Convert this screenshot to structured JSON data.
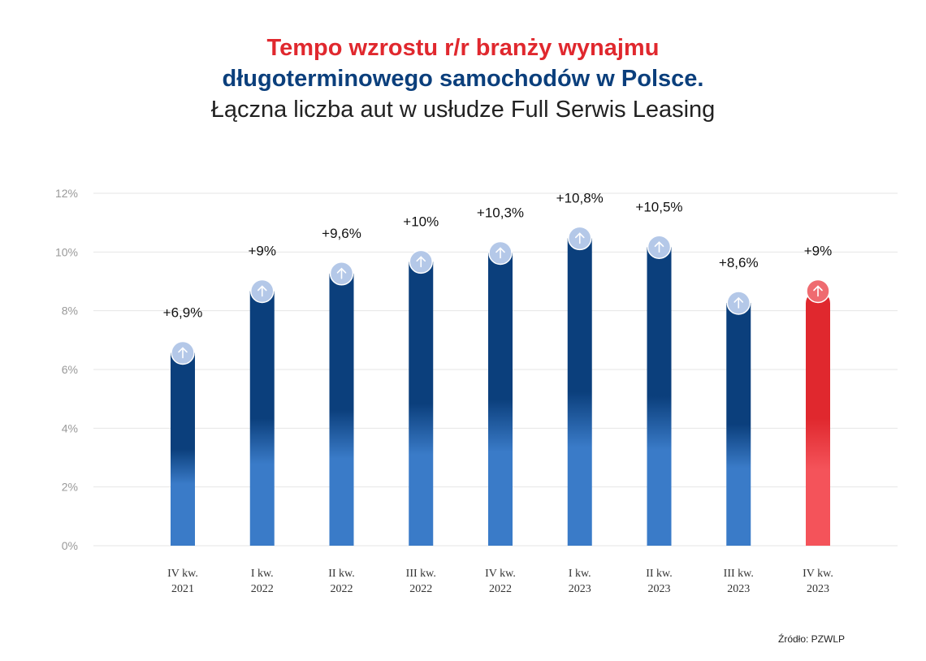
{
  "title": {
    "line1": "Tempo wzrostu r/r branży wynajmu",
    "line2": "długoterminowego samochodów w Polsce.",
    "line3": "Łączna liczba aut w usłudze Full Serwis Leasing"
  },
  "source": "Źródło: PZWLP",
  "colors": {
    "bar_dark": "#0b3f7c",
    "bar_light": "#3a7bc8",
    "highlight_dark": "#e0282e",
    "highlight_light": "#f4535a",
    "marker": "#b4c8e8",
    "grid": "#e6e6e6"
  },
  "icons": {
    "marker": "arrow-up-icon"
  },
  "chart_data": {
    "type": "bar",
    "categories": [
      [
        "IV kw.",
        "2021"
      ],
      [
        "I kw.",
        "2022"
      ],
      [
        "II kw.",
        "2022"
      ],
      [
        "III kw.",
        "2022"
      ],
      [
        "IV kw.",
        "2022"
      ],
      [
        "I kw.",
        "2023"
      ],
      [
        "II kw.",
        "2023"
      ],
      [
        "III kw.",
        "2023"
      ],
      [
        "IV kw.",
        "2023"
      ]
    ],
    "values": [
      6.9,
      9,
      9.6,
      10,
      10.3,
      10.8,
      10.5,
      8.6,
      9
    ],
    "data_labels": [
      "+6,9%",
      "+9%",
      "+9,6%",
      "+10%",
      "+10,3%",
      "+10,8%",
      "+10,5%",
      "+8,6%",
      "+9%"
    ],
    "highlight_index": 8,
    "ylim": [
      0,
      12
    ],
    "yticks": [
      0,
      2,
      4,
      6,
      8,
      10,
      12
    ],
    "ytick_labels": [
      "0%",
      "2%",
      "4%",
      "6%",
      "8%",
      "10%",
      "12%"
    ],
    "grid": true
  }
}
